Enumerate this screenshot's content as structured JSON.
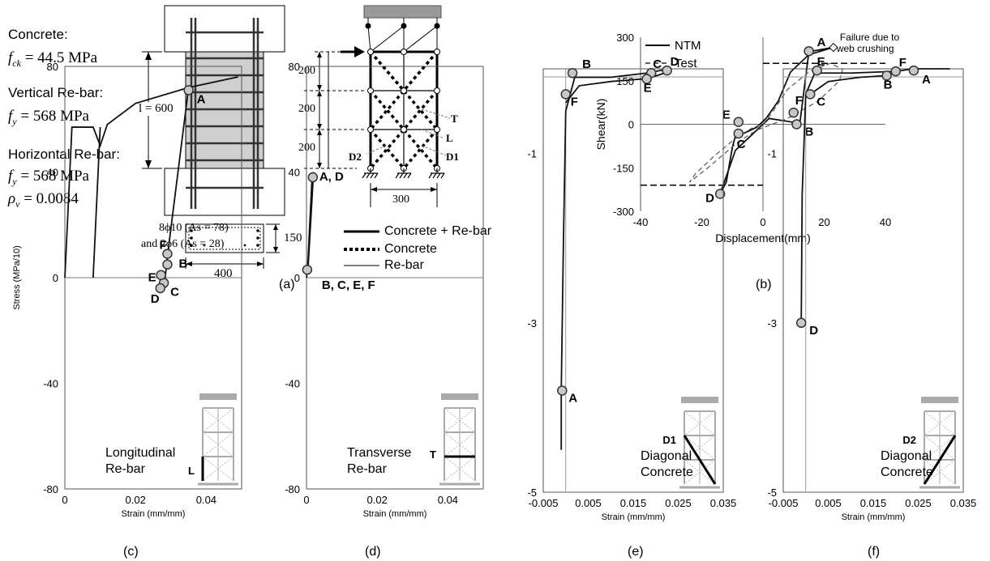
{
  "panel_a": {
    "materials": [
      {
        "title": "Concrete:",
        "sym": "f",
        "sub": "ck",
        "value": "= 44.5 MPa"
      },
      {
        "title": "Vertical Re-bar:",
        "sym": "f",
        "sub": "y",
        "value": "= 568 MPa"
      },
      {
        "title": "Horizontal Re-bar:",
        "sym": "f",
        "sub": "y",
        "value": "= 568 MPa",
        "sym2": "ρ",
        "sub2": "v",
        "value2": "= 0.0084"
      }
    ],
    "height_label": "l = 600",
    "dim_labels": [
      "200",
      "200",
      "200"
    ],
    "width_label": "300",
    "section_depth": "150",
    "section_width": "400",
    "rebar_note_1": "8ϕ10 (As = 78)",
    "rebar_note_2": "and 2ϕ6 (As = 28)",
    "element_labels": [
      "T",
      "L",
      "D1",
      "D2"
    ],
    "legend": [
      {
        "label": "Concrete + Re-bar",
        "style": "thick"
      },
      {
        "label": "Concrete",
        "style": "dotted"
      },
      {
        "label": "Re-bar",
        "style": "thin"
      }
    ]
  },
  "captions": [
    "(a)",
    "(b)",
    "(c)",
    "(d)",
    "(e)",
    "(f)"
  ],
  "chart_data": [
    {
      "id": "b",
      "type": "line",
      "xlabel": "Displacement(mm)",
      "ylabel": "Shear(kN)",
      "xlim": [
        -40,
        40
      ],
      "ylim": [
        -300,
        300
      ],
      "xticks": [
        -40,
        -20,
        0,
        20,
        40
      ],
      "yticks": [
        -300,
        -150,
        0,
        150,
        300
      ],
      "legend": {
        "position": "top-left",
        "entries": [
          "NTM",
          "Test"
        ]
      },
      "annotation": [
        "Failure due to",
        "web crushing"
      ],
      "series": [
        {
          "name": "NTM",
          "style": "solid",
          "x": [
            0,
            2,
            8,
            11,
            12,
            15,
            23,
            15,
            9,
            5,
            1,
            -2,
            -6,
            -9,
            -10,
            -12,
            -14,
            -9,
            -4,
            0
          ],
          "y": [
            0,
            20,
            10,
            5,
            0,
            250,
            265,
            240,
            180,
            80,
            20,
            -10,
            -30,
            -40,
            -80,
            -200,
            -240,
            -90,
            -40,
            0
          ]
        },
        {
          "name": "Test",
          "style": "dashed",
          "x": [
            0,
            3,
            8,
            15,
            22,
            26,
            25,
            18,
            8,
            3,
            -2,
            -8,
            -18,
            -24,
            -22,
            -16,
            -8,
            -3,
            0
          ],
          "y": [
            0,
            40,
            120,
            180,
            210,
            190,
            150,
            80,
            20,
            0,
            -20,
            -60,
            -150,
            -200,
            -170,
            -110,
            -40,
            -10,
            0
          ]
        }
      ],
      "points": [
        {
          "label": "A",
          "x": 15,
          "y": 252
        },
        {
          "label": "B",
          "x": 11,
          "y": 0
        },
        {
          "label": "C",
          "x": -8,
          "y": -32
        },
        {
          "label": "D",
          "x": -14,
          "y": -240
        },
        {
          "label": "E",
          "x": -8,
          "y": 8
        },
        {
          "label": "F",
          "x": 10,
          "y": 40
        }
      ]
    },
    {
      "id": "c",
      "type": "line",
      "xlabel": "Strain (mm/mm)",
      "ylabel": "Stress (MPa/10)",
      "xlim": [
        0,
        0.05
      ],
      "ylim": [
        -80,
        80
      ],
      "xticks": [
        0,
        0.02,
        0.04
      ],
      "xtick_labels": [
        "0",
        "0.02",
        "0.04"
      ],
      "yticks": [
        -80,
        -40,
        0,
        40,
        80
      ],
      "inset_label": [
        "Longitudinal",
        "Re-bar"
      ],
      "element": "L",
      "series": [
        {
          "name": "",
          "x": [
            0,
            0.002,
            0.008,
            0.01,
            0.012,
            0.02,
            0.035,
            0.049
          ],
          "y": [
            0,
            57,
            57,
            50,
            58,
            66,
            72,
            76
          ]
        },
        {
          "name": "",
          "x": [
            0.008,
            0.01
          ],
          "y": [
            0,
            57
          ]
        },
        {
          "name": "",
          "x": [
            0.028,
            0.029,
            0.035
          ],
          "y": [
            -5,
            8,
            72
          ]
        }
      ],
      "points": [
        {
          "label": "A",
          "x": 0.035,
          "y": 71
        },
        {
          "label": "B",
          "x": 0.029,
          "y": 5
        },
        {
          "label": "C",
          "x": 0.028,
          "y": -2
        },
        {
          "label": "D",
          "x": 0.027,
          "y": -4
        },
        {
          "label": "E",
          "x": 0.0272,
          "y": 1
        },
        {
          "label": "F",
          "x": 0.029,
          "y": 9
        }
      ]
    },
    {
      "id": "d",
      "type": "line",
      "xlabel": "Strain (mm/mm)",
      "ylabel": "",
      "xlim": [
        0,
        0.05
      ],
      "ylim": [
        -80,
        80
      ],
      "xticks": [
        0,
        0.02,
        0.04
      ],
      "xtick_labels": [
        "0",
        "0.02",
        "0.04"
      ],
      "yticks": [
        -80,
        -40,
        0,
        40,
        80
      ],
      "inset_label": [
        "Transverse",
        "Re-bar"
      ],
      "element": "T",
      "series": [
        {
          "name": "",
          "x": [
            0,
            0.0005,
            0.002,
            0.0015,
            0.0003,
            0
          ],
          "y": [
            0,
            5,
            40,
            36,
            3,
            0
          ]
        }
      ],
      "points": [
        {
          "label": "A, D",
          "x": 0.0018,
          "y": 38
        },
        {
          "label": "B, C, E, F",
          "x": 0.0002,
          "y": 3
        }
      ]
    },
    {
      "id": "e",
      "type": "line",
      "xlabel": "Strain (mm/mm)",
      "ylabel": "",
      "xlim": [
        -0.005,
        0.035
      ],
      "ylim": [
        -5,
        0
      ],
      "xticks": [
        -0.005,
        0.005,
        0.015,
        0.025,
        0.035
      ],
      "xtick_labels": [
        "-0.005",
        "0.005",
        "0.015",
        "0.025",
        "0.035"
      ],
      "yticks": [
        -5,
        -3,
        -1
      ],
      "inset_label": [
        "Diagonal",
        "Concrete"
      ],
      "element": "D1",
      "series": [
        {
          "name": "",
          "x": [
            -0.001,
            -0.001,
            -0.0005,
            0,
            0.002,
            0.01,
            0.018,
            0.023
          ],
          "y": [
            -4.5,
            -3.8,
            -2,
            -0.5,
            -0.1,
            -0.1,
            -0.05,
            0
          ]
        },
        {
          "name": "",
          "x": [
            0,
            0.003,
            0.01,
            0.017,
            0.019,
            0.022
          ],
          "y": [
            -0.4,
            -0.2,
            -0.15,
            -0.12,
            -0.1,
            -0.05
          ]
        }
      ],
      "points": [
        {
          "label": "A",
          "x": -0.0008,
          "y": -3.8
        },
        {
          "label": "B",
          "x": 0.0015,
          "y": -0.05
        },
        {
          "label": "C",
          "x": 0.019,
          "y": -0.05
        },
        {
          "label": "D",
          "x": 0.0225,
          "y": -0.02
        },
        {
          "label": "E",
          "x": 0.018,
          "y": -0.12
        },
        {
          "label": "F",
          "x": 0,
          "y": -0.3
        }
      ]
    },
    {
      "id": "f",
      "type": "line",
      "xlabel": "Strain (mm/mm)",
      "ylabel": "",
      "xlim": [
        -0.005,
        0.035
      ],
      "ylim": [
        -5,
        0
      ],
      "xticks": [
        -0.005,
        0.005,
        0.015,
        0.025,
        0.035
      ],
      "xtick_labels": [
        "-0.005",
        "0.005",
        "0.015",
        "0.025",
        "0.035"
      ],
      "yticks": [
        -5,
        -3,
        -1
      ],
      "inset_label": [
        "Diagonal",
        "Concrete"
      ],
      "element": "D2",
      "series": [
        {
          "name": "",
          "x": [
            -0.001,
            -0.0008,
            0,
            0.002,
            0.01,
            0.02,
            0.024,
            0.032
          ],
          "y": [
            -3,
            -1.5,
            -0.3,
            -0.05,
            -0.05,
            -0.03,
            0,
            0
          ]
        },
        {
          "name": "",
          "x": [
            0.001,
            0.005,
            0.012,
            0.018,
            0.02
          ],
          "y": [
            -0.3,
            -0.15,
            -0.1,
            -0.08,
            -0.05
          ]
        }
      ],
      "points": [
        {
          "label": "A",
          "x": 0.024,
          "y": -0.02
        },
        {
          "label": "B",
          "x": 0.018,
          "y": -0.08
        },
        {
          "label": "C",
          "x": 0.001,
          "y": -0.3
        },
        {
          "label": "D",
          "x": -0.001,
          "y": -3
        },
        {
          "label": "E",
          "x": 0.0025,
          "y": -0.02
        },
        {
          "label": "F",
          "x": 0.02,
          "y": -0.03
        }
      ]
    }
  ]
}
